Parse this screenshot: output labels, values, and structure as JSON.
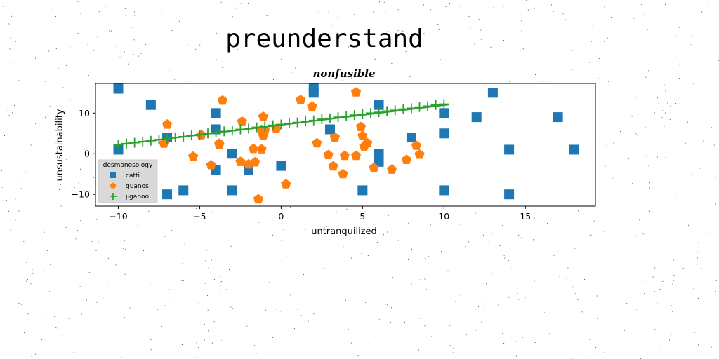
{
  "chart_data": {
    "type": "scatter",
    "suptitle": "preunderstand",
    "title": "nonfusible",
    "xlabel": "untranquilized",
    "ylabel": "unsustainability",
    "xlim": [
      -11.4,
      19.3
    ],
    "ylim": [
      -12.9,
      17.3
    ],
    "xticks": [
      -10,
      -5,
      0,
      5,
      10,
      15
    ],
    "yticks": [
      -10,
      0,
      10
    ],
    "grid": false,
    "legend": {
      "title": "desmonosology",
      "placement": "lower-left"
    },
    "series": [
      {
        "name": "catti",
        "marker": "square",
        "color": "#1f77b4",
        "points": [
          [
            -10,
            16
          ],
          [
            -10,
            1
          ],
          [
            -8,
            12
          ],
          [
            -7,
            4
          ],
          [
            -7,
            -10
          ],
          [
            -6,
            -9
          ],
          [
            -4,
            10
          ],
          [
            -4,
            6
          ],
          [
            -4,
            -4
          ],
          [
            -3,
            0
          ],
          [
            -3,
            -9
          ],
          [
            -2,
            -4
          ],
          [
            0,
            -3
          ],
          [
            2,
            16
          ],
          [
            2,
            15
          ],
          [
            3,
            6
          ],
          [
            5,
            -9
          ],
          [
            6,
            12
          ],
          [
            6,
            0
          ],
          [
            6,
            -2
          ],
          [
            8,
            4
          ],
          [
            10,
            10
          ],
          [
            10,
            5
          ],
          [
            10,
            -9
          ],
          [
            12,
            9
          ],
          [
            13,
            15
          ],
          [
            14,
            1
          ],
          [
            14,
            -10
          ],
          [
            17,
            9
          ],
          [
            18,
            1
          ]
        ]
      },
      {
        "name": "guanos",
        "marker": "pentagon",
        "color": "#ff7f0e",
        "points": [
          [
            -7.2,
            2.5
          ],
          [
            -7,
            7.2
          ],
          [
            -5.4,
            -0.7
          ],
          [
            -4.9,
            4.6
          ],
          [
            -4.3,
            -2.8
          ],
          [
            -3.8,
            2.5
          ],
          [
            -3.8,
            2.2
          ],
          [
            -3.6,
            13.1
          ],
          [
            -2.5,
            -2
          ],
          [
            -2.4,
            7.9
          ],
          [
            -2.0,
            -2.6
          ],
          [
            -1.7,
            1.2
          ],
          [
            -1.6,
            -2.1
          ],
          [
            -1.4,
            -11.2
          ],
          [
            -1.2,
            5.9
          ],
          [
            -1.2,
            1.1
          ],
          [
            -1.1,
            9.1
          ],
          [
            -1.1,
            4.4
          ],
          [
            -1.1,
            5.4
          ],
          [
            -1.0,
            5.7
          ],
          [
            -0.3,
            6.1
          ],
          [
            0.3,
            -7.5
          ],
          [
            1.2,
            13.2
          ],
          [
            1.9,
            11.6
          ],
          [
            2.2,
            2.6
          ],
          [
            2.9,
            -0.3
          ],
          [
            3.2,
            -3.1
          ],
          [
            3.3,
            4
          ],
          [
            3.8,
            -5
          ],
          [
            3.9,
            -0.5
          ],
          [
            4.6,
            -0.5
          ],
          [
            4.6,
            15.1
          ],
          [
            4.9,
            6.6
          ],
          [
            5.0,
            4.4
          ],
          [
            5.1,
            1.8
          ],
          [
            5.3,
            2.6
          ],
          [
            5.7,
            -3.5
          ],
          [
            6.8,
            -3.9
          ],
          [
            7.7,
            -1.5
          ],
          [
            8.3,
            2
          ],
          [
            8.5,
            -0.2
          ]
        ]
      },
      {
        "name": "jigaboo",
        "marker": "plus",
        "color": "#2ca02c",
        "line": {
          "x0": -10.3,
          "y0": 2.1,
          "x1": 10.3,
          "y1": 12.1
        },
        "points": [
          [
            -10,
            2.2
          ],
          [
            -9.5,
            2.5
          ],
          [
            -9,
            2.7
          ],
          [
            -8.5,
            3.0
          ],
          [
            -8,
            3.2
          ],
          [
            -7.5,
            3.5
          ],
          [
            -7,
            3.7
          ],
          [
            -6.5,
            4.0
          ],
          [
            -6,
            4.2
          ],
          [
            -5.5,
            4.5
          ],
          [
            -5,
            4.7
          ],
          [
            -4.5,
            5.0
          ],
          [
            -4,
            5.2
          ],
          [
            -3.5,
            5.5
          ],
          [
            -3,
            5.7
          ],
          [
            -2.5,
            6.0
          ],
          [
            -2,
            6.2
          ],
          [
            -1.5,
            6.5
          ],
          [
            -1,
            6.7
          ],
          [
            -0.5,
            7.0
          ],
          [
            0,
            7.2
          ],
          [
            0.5,
            7.5
          ],
          [
            1,
            7.7
          ],
          [
            1.5,
            8.0
          ],
          [
            2,
            8.2
          ],
          [
            2.5,
            8.5
          ],
          [
            3,
            8.7
          ],
          [
            3.5,
            9.0
          ],
          [
            4,
            9.2
          ],
          [
            4.5,
            9.5
          ],
          [
            5,
            9.7
          ],
          [
            5.5,
            10.0
          ],
          [
            6,
            10.2
          ],
          [
            6.5,
            10.5
          ],
          [
            7,
            10.7
          ],
          [
            7.5,
            11.0
          ],
          [
            8,
            11.2
          ],
          [
            8.5,
            11.5
          ],
          [
            9,
            11.7
          ],
          [
            9.5,
            12.0
          ],
          [
            10,
            12.2
          ]
        ]
      }
    ]
  }
}
